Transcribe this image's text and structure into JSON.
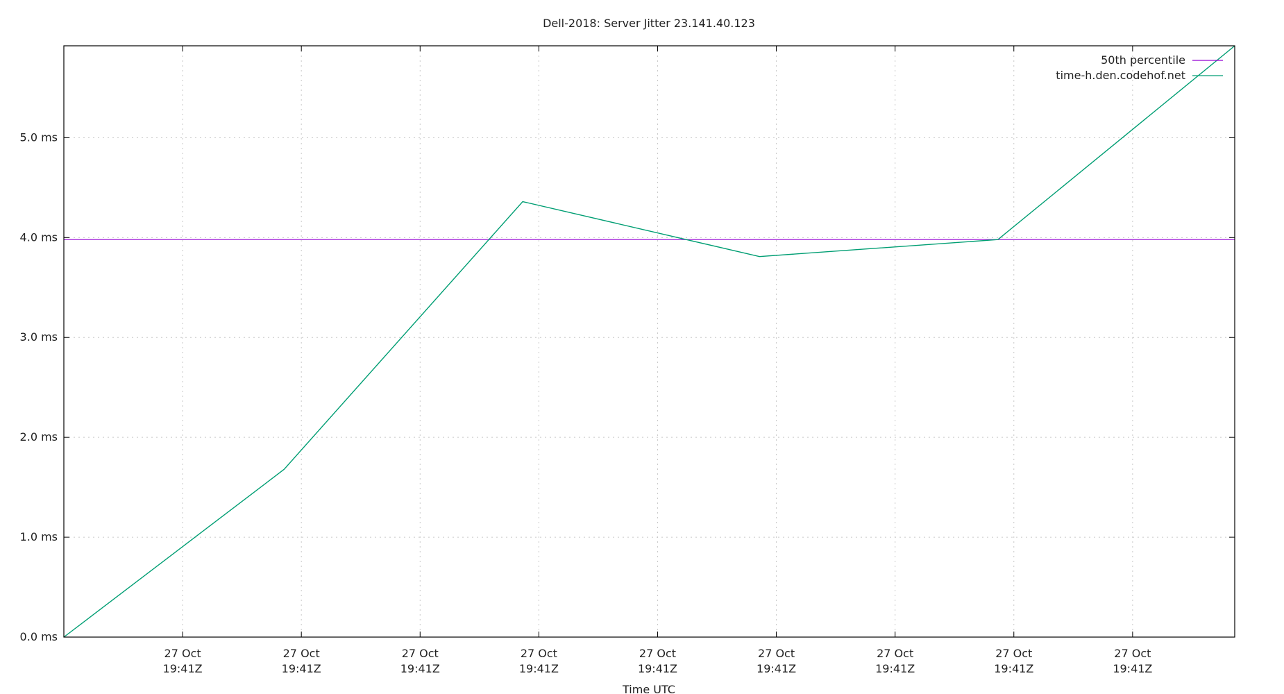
{
  "chart_data": {
    "type": "line",
    "title": "Dell-2018: Server Jitter 23.141.40.123",
    "xlabel": "Time UTC",
    "ylabel": "",
    "ylim": [
      0,
      5.92
    ],
    "xlim": [
      0,
      9.86
    ],
    "grid": true,
    "legend_position": "top-right",
    "y_ticks": [
      {
        "value": 0,
        "label": "0.0 ms"
      },
      {
        "value": 1,
        "label": "1.0 ms"
      },
      {
        "value": 2,
        "label": "2.0 ms"
      },
      {
        "value": 3,
        "label": "3.0 ms"
      },
      {
        "value": 4,
        "label": "4.0 ms"
      },
      {
        "value": 5,
        "label": "5.0 ms"
      }
    ],
    "x_ticks": [
      {
        "value": 1,
        "label": [
          "27 Oct",
          "19:41Z"
        ]
      },
      {
        "value": 2,
        "label": [
          "27 Oct",
          "19:41Z"
        ]
      },
      {
        "value": 3,
        "label": [
          "27 Oct",
          "19:41Z"
        ]
      },
      {
        "value": 4,
        "label": [
          "27 Oct",
          "19:41Z"
        ]
      },
      {
        "value": 5,
        "label": [
          "27 Oct",
          "19:41Z"
        ]
      },
      {
        "value": 6,
        "label": [
          "27 Oct",
          "19:41Z"
        ]
      },
      {
        "value": 7,
        "label": [
          "27 Oct",
          "19:41Z"
        ]
      },
      {
        "value": 8,
        "label": [
          "27 Oct",
          "19:41Z"
        ]
      },
      {
        "value": 9,
        "label": [
          "27 Oct",
          "19:41Z"
        ]
      }
    ],
    "series": [
      {
        "name": "50th percentile",
        "color": "#9400d3",
        "type": "hline",
        "y": 3.98
      },
      {
        "name": "time-h.den.codehof.net",
        "color": "#009e73",
        "x": [
          0,
          1.855,
          3.864,
          5.858,
          7.866,
          9.86
        ],
        "y": [
          0,
          1.68,
          4.36,
          3.81,
          3.98,
          5.92
        ]
      }
    ]
  }
}
